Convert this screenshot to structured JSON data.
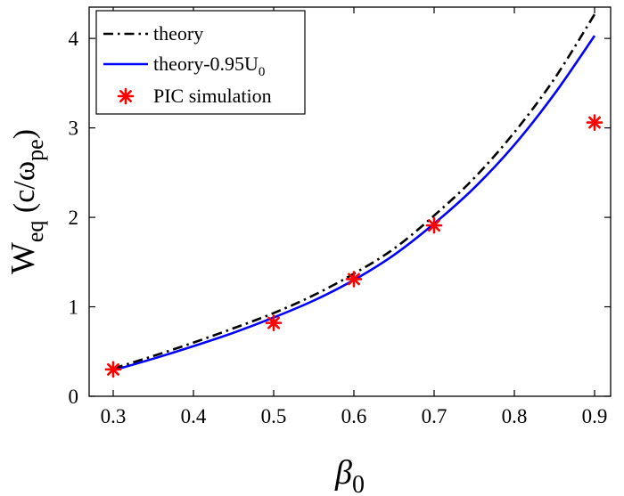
{
  "chart_data": {
    "type": "line",
    "xlabel": {
      "main": "β",
      "sub": "0"
    },
    "ylabel": {
      "main": "W",
      "sub": "eq",
      "mid": "(c/ω",
      "sub2": "pe",
      "close": ")"
    },
    "xlim": [
      0.27,
      0.92
    ],
    "ylim": [
      0,
      4.35
    ],
    "xticks": [
      0.3,
      0.4,
      0.5,
      0.6,
      0.7,
      0.8,
      0.9
    ],
    "xtick_labels": [
      "0.3",
      "0.4",
      "0.5",
      "0.6",
      "0.7",
      "0.8",
      "0.9"
    ],
    "yticks": [
      0,
      1,
      2,
      3,
      4
    ],
    "ytick_labels": [
      "0",
      "1",
      "2",
      "3",
      "4"
    ],
    "grid": false,
    "legend_position": "top-left",
    "series": [
      {
        "name": "theory",
        "kind": "line",
        "style": "dash-dot",
        "color": "#000000",
        "x": [
          0.3,
          0.35,
          0.4,
          0.45,
          0.5,
          0.55,
          0.6,
          0.65,
          0.7,
          0.75,
          0.8,
          0.85,
          0.9
        ],
        "y": [
          0.31,
          0.45,
          0.6,
          0.76,
          0.93,
          1.13,
          1.37,
          1.65,
          2.02,
          2.44,
          2.95,
          3.55,
          4.27
        ]
      },
      {
        "name": "theory-0.95U",
        "name_sub": "0",
        "kind": "line",
        "style": "solid",
        "color": "#0000ff",
        "x": [
          0.3,
          0.35,
          0.4,
          0.45,
          0.5,
          0.55,
          0.6,
          0.65,
          0.7,
          0.75,
          0.8,
          0.85,
          0.9
        ],
        "y": [
          0.29,
          0.42,
          0.56,
          0.71,
          0.88,
          1.07,
          1.3,
          1.58,
          1.93,
          2.33,
          2.81,
          3.38,
          4.03
        ]
      },
      {
        "name": "PIC simulation",
        "kind": "scatter",
        "marker": "asterisk",
        "color": "#ff0000",
        "x": [
          0.3,
          0.5,
          0.6,
          0.7,
          0.9
        ],
        "y": [
          0.3,
          0.82,
          1.31,
          1.91,
          3.06
        ]
      }
    ]
  }
}
